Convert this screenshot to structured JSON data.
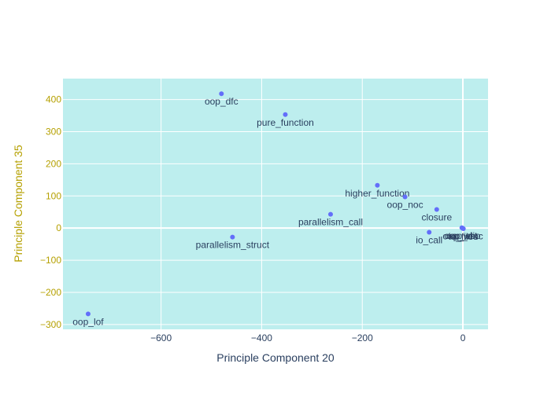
{
  "chart_data": {
    "type": "scatter",
    "xlabel": "Principle Component 20",
    "ylabel": "Principle Component 35",
    "xlim": [
      -795,
      50
    ],
    "ylim": [
      -315,
      465
    ],
    "xticks": [
      -600,
      -400,
      -200,
      0
    ],
    "xtick_labels": [
      "−600",
      "−400",
      "−200",
      "0"
    ],
    "yticks": [
      -300,
      -200,
      -100,
      0,
      100,
      200,
      300,
      400
    ],
    "ytick_labels": [
      "−300",
      "−200",
      "−100",
      "0",
      "100",
      "200",
      "300",
      "400"
    ],
    "grid": true,
    "colors": {
      "plot_bg": "#bdeeee",
      "marker": "#636efa",
      "axis_text": "#2a3f5f",
      "y_text": "#b5a000"
    },
    "points": [
      {
        "label": "oop_dfc",
        "x": -480,
        "y": 418
      },
      {
        "label": "pure_function",
        "x": -353,
        "y": 353
      },
      {
        "label": "higher_function",
        "x": -170,
        "y": 133
      },
      {
        "label": "oop_noc",
        "x": -115,
        "y": 97
      },
      {
        "label": "closure",
        "x": -52,
        "y": 58
      },
      {
        "label": "parallelism_call",
        "x": -263,
        "y": 43
      },
      {
        "label": "oop_dit",
        "x": -2,
        "y": 1
      },
      {
        "label": "oop_cbo",
        "x": -1,
        "y": 0
      },
      {
        "label": "oop_wmc",
        "x": 0,
        "y": -1
      },
      {
        "label": "io_files",
        "x": 1,
        "y": -2
      },
      {
        "label": "io_call",
        "x": -67,
        "y": -13
      },
      {
        "label": "parallelism_struct",
        "x": -458,
        "y": -28
      },
      {
        "label": "oop_lof",
        "x": -745,
        "y": -267
      }
    ]
  }
}
